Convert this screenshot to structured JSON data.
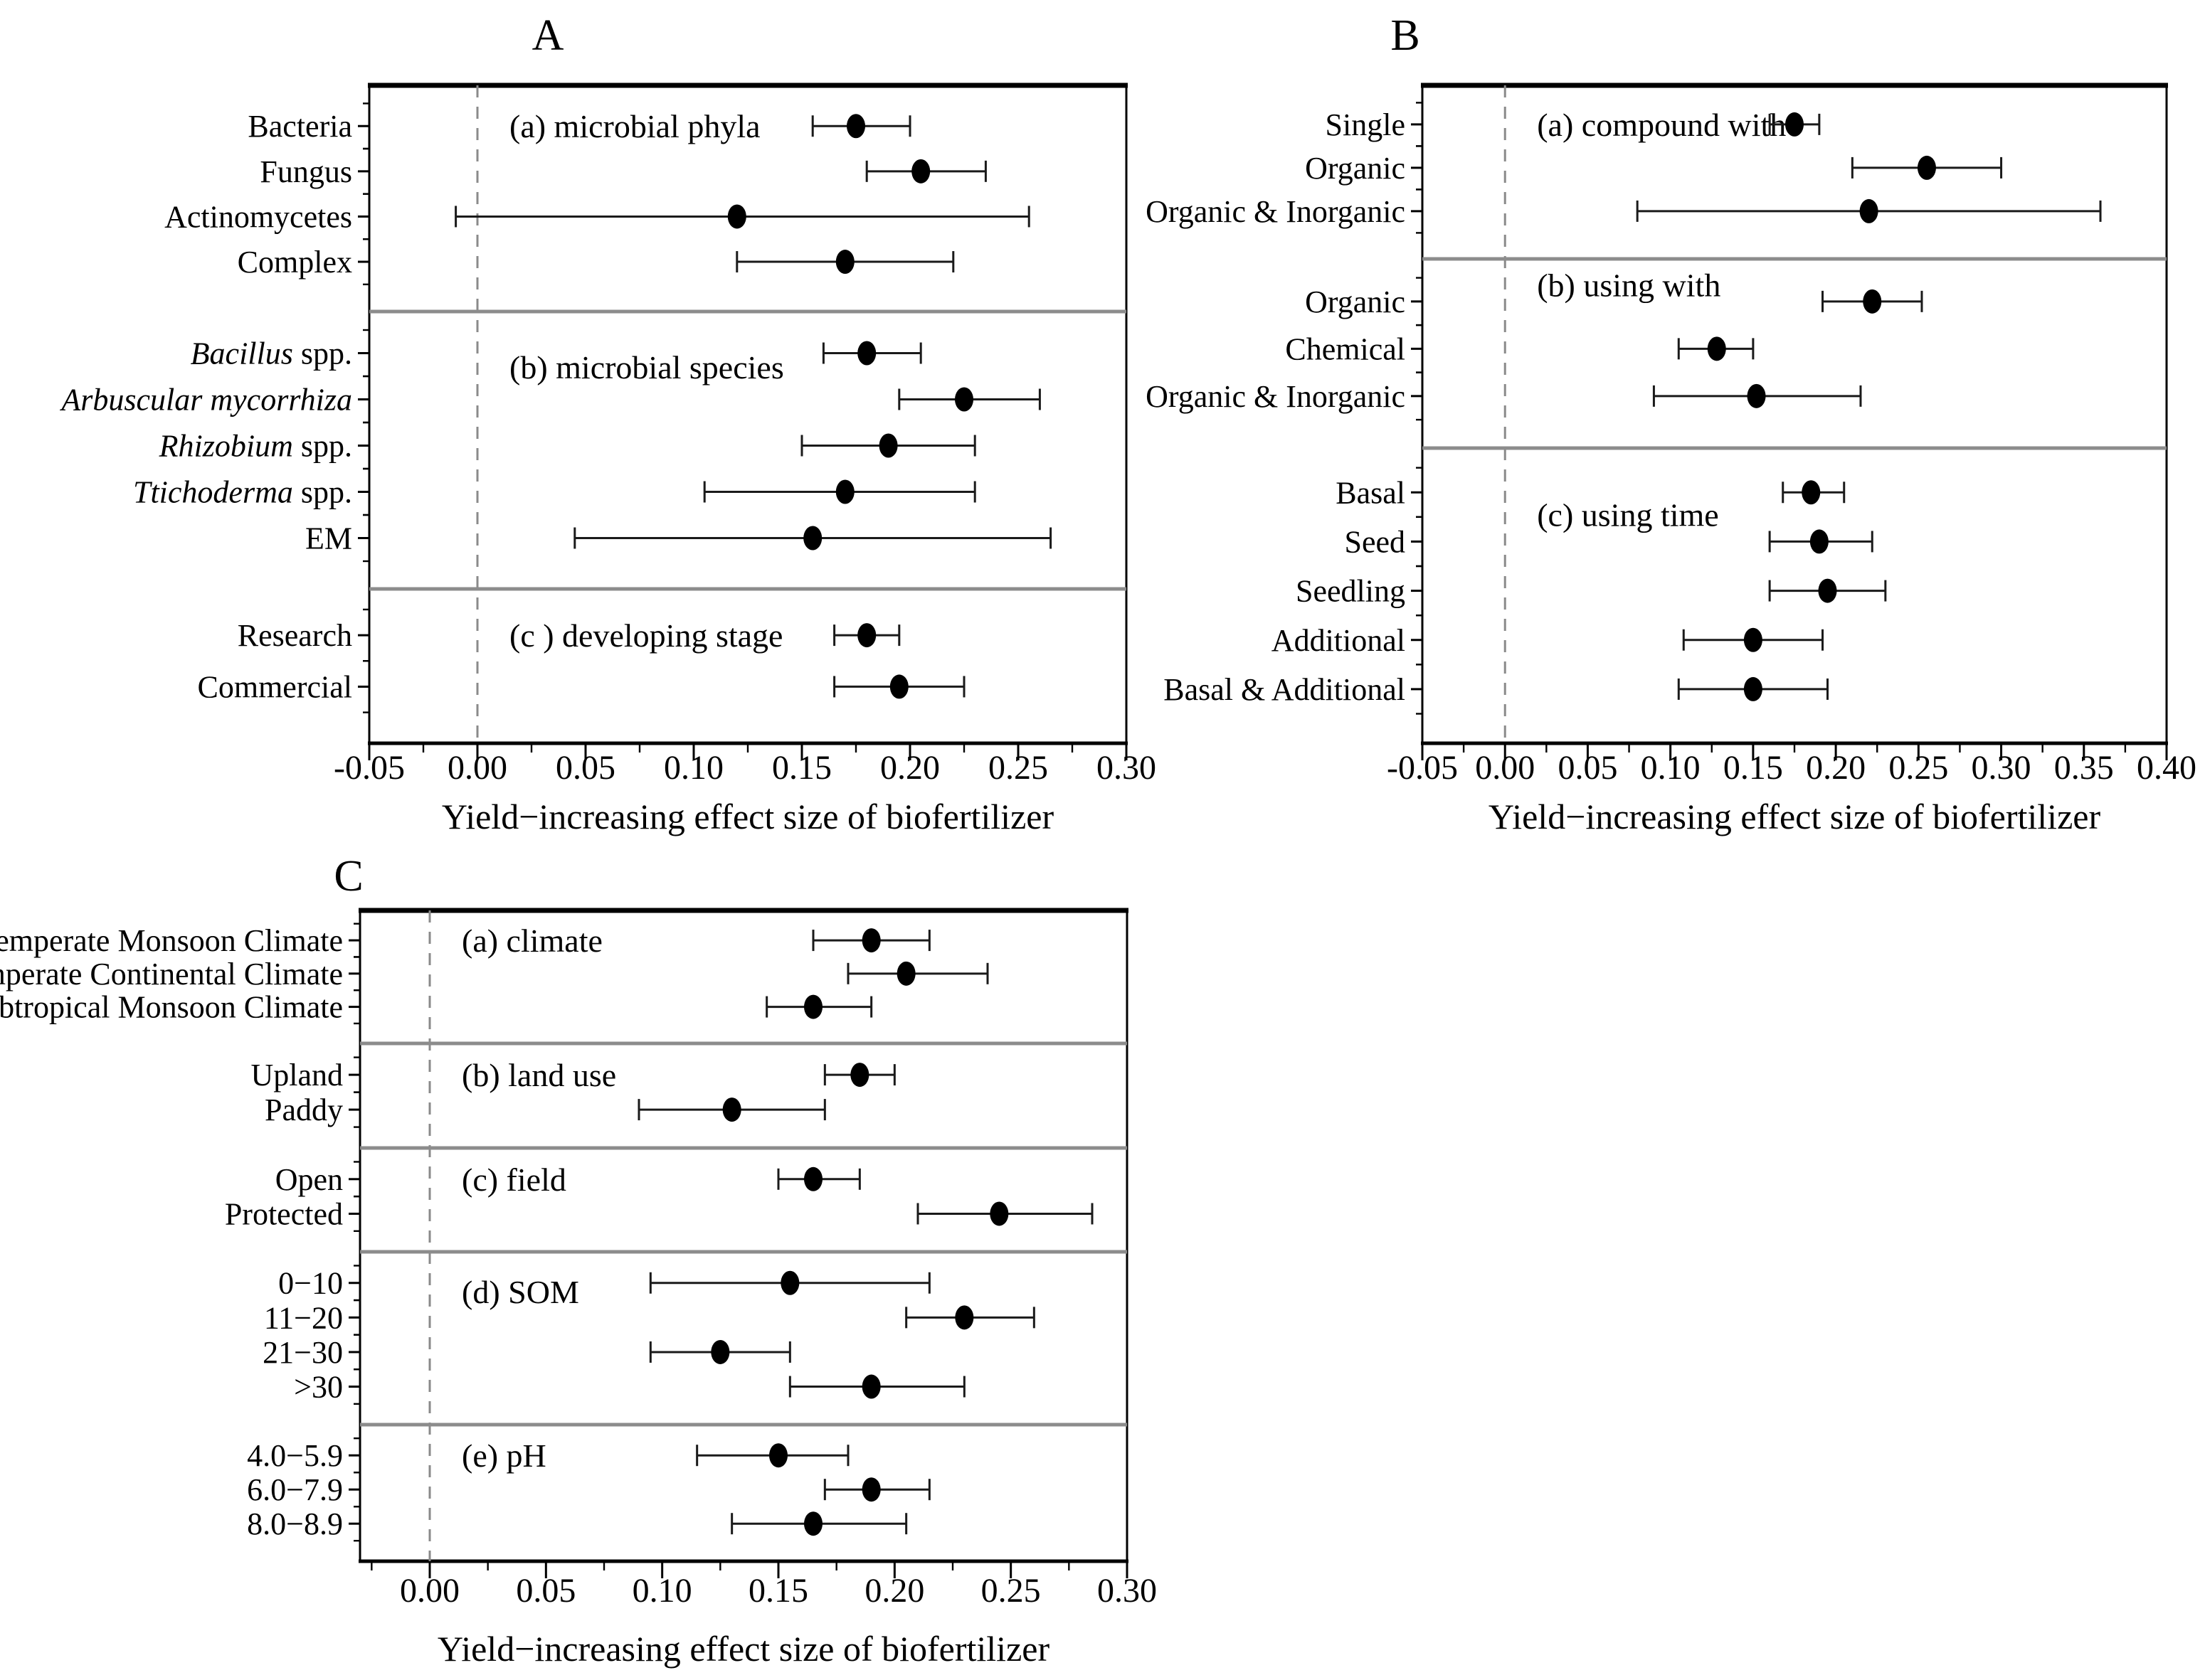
{
  "figure": {
    "xlabel": "Yield−increasing effect size of biofertilizer",
    "accent_black": "#000000",
    "separator_gray": "#8c8c8c",
    "zero_line_gray": "#8a8a8a"
  },
  "chart_data": [
    {
      "type": "scatter",
      "panel_letter": "A",
      "xlabel": "Yield−increasing effect size of biofertilizer",
      "xlim": [
        -0.05,
        0.3
      ],
      "xtick_values": [
        -0.05,
        0.0,
        0.05,
        0.1,
        0.15,
        0.2,
        0.25,
        0.3
      ],
      "xtick_labels": [
        "-0.05",
        "0.00",
        "0.05",
        "0.10",
        "0.15",
        "0.20",
        "0.25",
        "0.30"
      ],
      "minor_step": 0.025,
      "zero_line": 0.0,
      "grid": false,
      "sections": [
        {
          "label": "(a) microbial phyla",
          "label_offset_rows": 0,
          "rows": [
            {
              "label": "Bacteria",
              "value": 0.175,
              "lo": 0.155,
              "hi": 0.2
            },
            {
              "label": "Fungus",
              "value": 0.205,
              "lo": 0.18,
              "hi": 0.235
            },
            {
              "label": "Actinomycetes",
              "value": 0.12,
              "lo": -0.01,
              "hi": 0.255
            },
            {
              "label": "Complex",
              "value": 0.17,
              "lo": 0.12,
              "hi": 0.22
            }
          ]
        },
        {
          "label": "(b) microbial species",
          "label_offset_rows": 0.3,
          "rows": [
            {
              "label_parts": [
                {
                  "t": "Bacillus",
                  "i": true
                },
                {
                  "t": " spp.",
                  "i": false
                }
              ],
              "value": 0.18,
              "lo": 0.16,
              "hi": 0.205
            },
            {
              "label_parts": [
                {
                  "t": "Arbuscular mycorrhiza",
                  "i": true
                }
              ],
              "value": 0.225,
              "lo": 0.195,
              "hi": 0.26
            },
            {
              "label_parts": [
                {
                  "t": "Rhizobium",
                  "i": true
                },
                {
                  "t": " spp.",
                  "i": false
                }
              ],
              "value": 0.19,
              "lo": 0.15,
              "hi": 0.23
            },
            {
              "label_parts": [
                {
                  "t": "Ttichoderma",
                  "i": true
                },
                {
                  "t": " spp.",
                  "i": false
                }
              ],
              "value": 0.17,
              "lo": 0.105,
              "hi": 0.23
            },
            {
              "label": "EM",
              "value": 0.155,
              "lo": 0.045,
              "hi": 0.265
            }
          ]
        },
        {
          "label": "(c ) developing stage",
          "label_offset_rows": 0,
          "rows": [
            {
              "label": "Research",
              "value": 0.18,
              "lo": 0.165,
              "hi": 0.195
            },
            {
              "label": "Commercial",
              "value": 0.195,
              "lo": 0.165,
              "hi": 0.225
            }
          ]
        }
      ]
    },
    {
      "type": "scatter",
      "panel_letter": "B",
      "xlabel": "Yield−increasing effect size of biofertilizer",
      "xlim": [
        -0.05,
        0.4
      ],
      "xtick_values": [
        -0.05,
        0.0,
        0.05,
        0.1,
        0.15,
        0.2,
        0.25,
        0.3,
        0.35,
        0.4
      ],
      "xtick_labels": [
        "-0.05",
        "0.00",
        "0.05",
        "0.10",
        "0.15",
        "0.20",
        "0.25",
        "0.30",
        "0.35",
        "0.40"
      ],
      "minor_step": 0.025,
      "zero_line": 0.0,
      "grid": false,
      "sections": [
        {
          "label": "(a) compound with",
          "label_offset_rows": 0,
          "rows": [
            {
              "label": "Single",
              "value": 0.175,
              "lo": 0.16,
              "hi": 0.19
            },
            {
              "label": "Organic",
              "value": 0.255,
              "lo": 0.21,
              "hi": 0.3
            },
            {
              "label": "Organic & Inorganic",
              "value": 0.22,
              "lo": 0.08,
              "hi": 0.36
            }
          ]
        },
        {
          "label": "(b) using with",
          "label_offset_rows": -0.35,
          "rows": [
            {
              "label": "Organic",
              "value": 0.222,
              "lo": 0.192,
              "hi": 0.252
            },
            {
              "label": "Chemical",
              "value": 0.128,
              "lo": 0.105,
              "hi": 0.15
            },
            {
              "label": "Organic & Inorganic",
              "value": 0.152,
              "lo": 0.09,
              "hi": 0.215
            }
          ]
        },
        {
          "label": "(c) using time",
          "label_offset_rows": 0.45,
          "rows": [
            {
              "label": "Basal",
              "value": 0.185,
              "lo": 0.168,
              "hi": 0.205
            },
            {
              "label": "Seed",
              "value": 0.19,
              "lo": 0.16,
              "hi": 0.222
            },
            {
              "label": "Seedling",
              "value": 0.195,
              "lo": 0.16,
              "hi": 0.23
            },
            {
              "label": "Additional",
              "value": 0.15,
              "lo": 0.108,
              "hi": 0.192
            },
            {
              "label": "Basal & Additional",
              "value": 0.15,
              "lo": 0.105,
              "hi": 0.195
            }
          ]
        }
      ]
    },
    {
      "type": "scatter",
      "panel_letter": "C",
      "xlabel": "Yield−increasing effect size of biofertilizer",
      "xlim": [
        -0.03,
        0.3
      ],
      "xtick_values": [
        0.0,
        0.05,
        0.1,
        0.15,
        0.2,
        0.25,
        0.3
      ],
      "xtick_labels": [
        "0.00",
        "0.05",
        "0.10",
        "0.15",
        "0.20",
        "0.25",
        "0.30"
      ],
      "minor_step": 0.025,
      "zero_line": 0.0,
      "grid": false,
      "sections": [
        {
          "label": "(a) climate",
          "label_offset_rows": 0,
          "rows": [
            {
              "label": "Temperate Monsoon Climate",
              "value": 0.19,
              "lo": 0.165,
              "hi": 0.215
            },
            {
              "label": "Temperate Continental Climate",
              "value": 0.205,
              "lo": 0.18,
              "hi": 0.24
            },
            {
              "label": "Subtropical Monsoon Climate",
              "value": 0.165,
              "lo": 0.145,
              "hi": 0.19
            }
          ]
        },
        {
          "label": "(b) land use",
          "label_offset_rows": 0,
          "rows": [
            {
              "label": "Upland",
              "value": 0.185,
              "lo": 0.17,
              "hi": 0.2
            },
            {
              "label": "Paddy",
              "value": 0.13,
              "lo": 0.09,
              "hi": 0.17
            }
          ]
        },
        {
          "label": "(c) field",
          "label_offset_rows": 0,
          "rows": [
            {
              "label": "Open",
              "value": 0.165,
              "lo": 0.15,
              "hi": 0.185
            },
            {
              "label": "Protected",
              "value": 0.245,
              "lo": 0.21,
              "hi": 0.285
            }
          ]
        },
        {
          "label": "(d) SOM",
          "label_offset_rows": 0.25,
          "rows": [
            {
              "label": "0−10",
              "value": 0.155,
              "lo": 0.095,
              "hi": 0.215
            },
            {
              "label": "11−20",
              "value": 0.23,
              "lo": 0.205,
              "hi": 0.26
            },
            {
              "label": "21−30",
              "value": 0.125,
              "lo": 0.095,
              "hi": 0.155
            },
            {
              "label": ">30",
              "value": 0.19,
              "lo": 0.155,
              "hi": 0.23
            }
          ]
        },
        {
          "label": "(e) pH",
          "label_offset_rows": 0,
          "rows": [
            {
              "label": "4.0−5.9",
              "value": 0.15,
              "lo": 0.115,
              "hi": 0.18
            },
            {
              "label": "6.0−7.9",
              "value": 0.19,
              "lo": 0.17,
              "hi": 0.215
            },
            {
              "label": "8.0−8.9",
              "value": 0.165,
              "lo": 0.13,
              "hi": 0.205
            }
          ]
        }
      ]
    }
  ]
}
